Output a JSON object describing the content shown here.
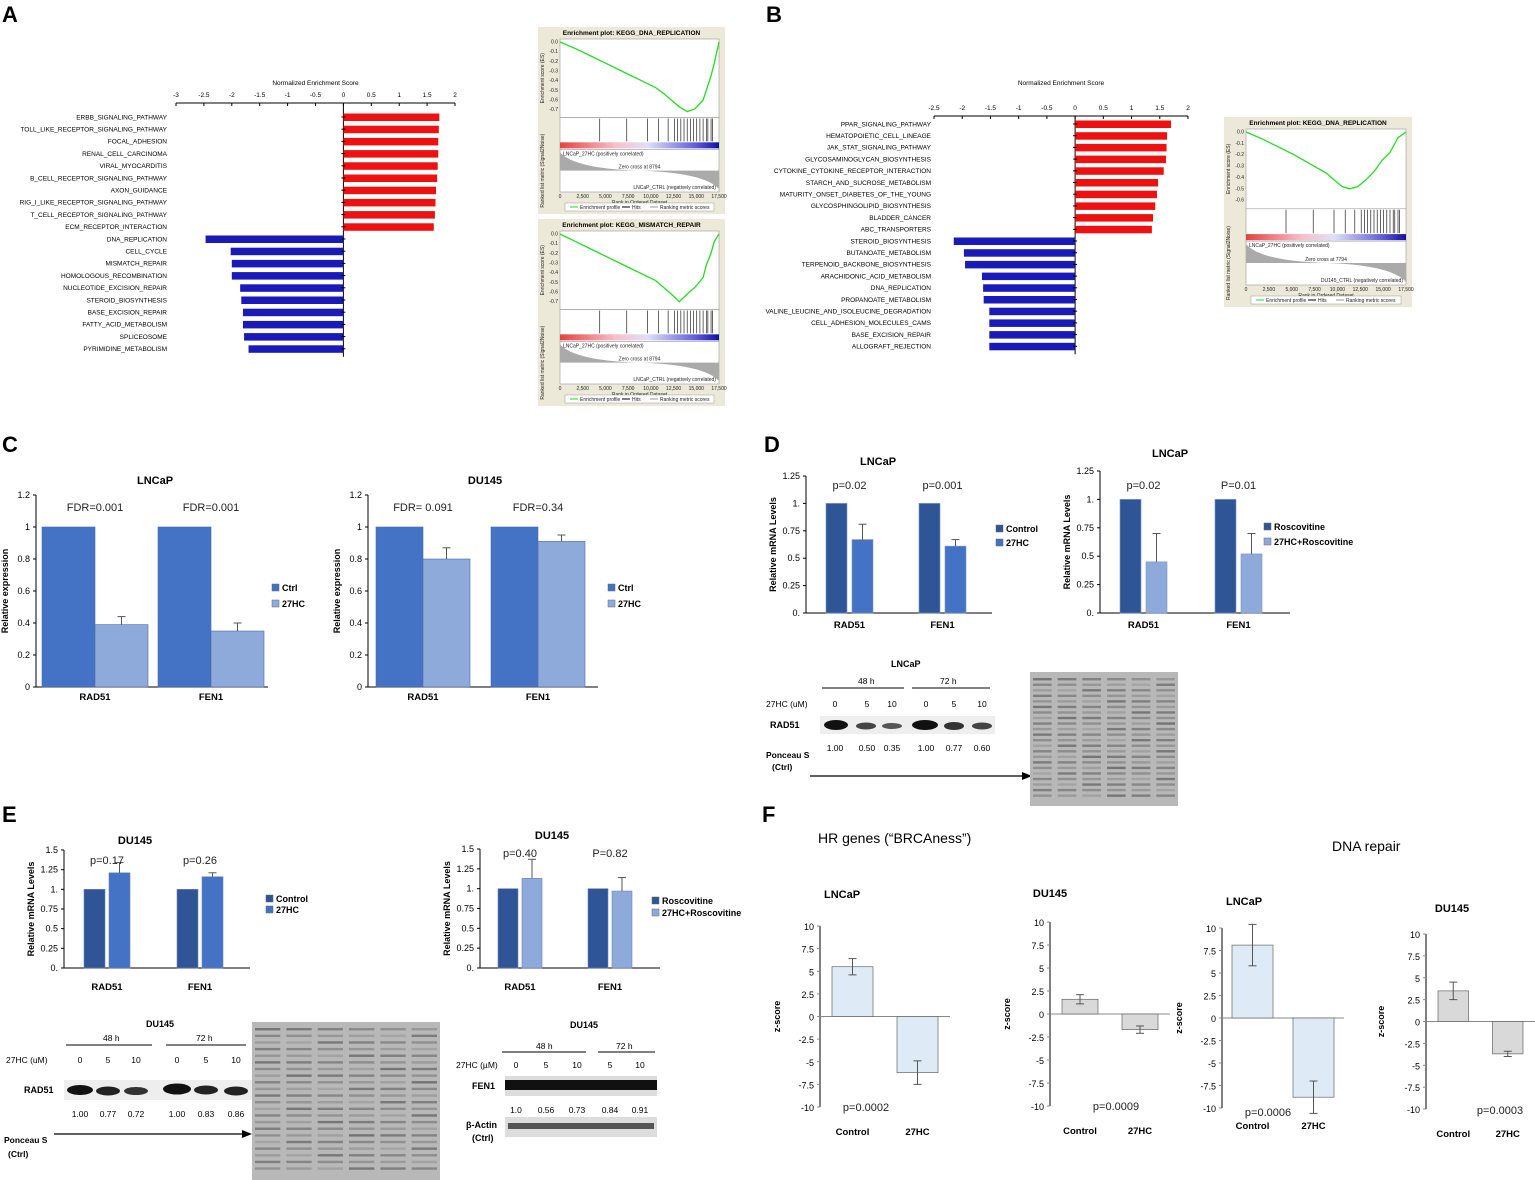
{
  "panels": {
    "A": "A",
    "B": "B",
    "C": "C",
    "D": "D",
    "E": "E",
    "F": "F"
  },
  "gsea_links": {
    "pos_label": "LNCaP_27HC (positively correlated)",
    "neg_label": "LNCaP_CTRL (negatively correlated)",
    "neg_label_b": "DU145_CTRL (negatively correlated)",
    "zero_cross": "Zero cross at 8794",
    "zero_cross_b": "Zero cross at 7794",
    "rank_axis": "Rank in Ordered Dataset",
    "y_es": "Enrichment score (ES)",
    "y_rank": "Ranked list metric (Signal2Noise)",
    "legend": [
      "Enrichment profile",
      "Hits",
      "Ranking metric scores"
    ],
    "x_ticks": [
      "0",
      "2,500",
      "5,000",
      "7,500",
      "10,000",
      "12,500",
      "15,000",
      "17,500"
    ]
  },
  "chart_data": [
    {
      "id": "A-nes",
      "type": "bar",
      "orientation": "horizontal",
      "title": "Normalized Enrichment Score",
      "xlim": [
        -3,
        2
      ],
      "x_ticks": [
        "-3",
        "-2.5",
        "-2",
        "-1.5",
        "-1",
        "-0.5",
        "0",
        "0.5",
        "1",
        "1.5",
        "2"
      ],
      "categories": [
        "ERBB_SIGNALING_PATHWAY",
        "TOLL_LIKE_RECEPTOR_SIGNALING_PATHWAY",
        "FOCAL_ADHESION",
        "RENAL_CELL_CARCINOMA",
        "VIRAL_MYOCARDITIS",
        "B_CELL_RECEPTOR_SIGNALING_PATHWAY",
        "AXON_GUIDANCE",
        "RIG_I_LIKE_RECEPTOR_SIGNALING_PATHWAY",
        "T_CELL_RECEPTOR_SIGNALING_PATHWAY",
        "ECM_RECEPTOR_INTERACTION",
        "DNA_REPLICATION",
        "CELL_CYCLE",
        "MISMATCH_REPAIR",
        "HOMOLOGOUS_RECOMBINATION",
        "NUCLEOTIDE_EXCISION_REPAIR",
        "STEROID_BIOSYNTHESIS",
        "BASE_EXCISION_REPAIR",
        "FATTY_ACID_METABOLISM",
        "SPLICEOSOME",
        "PYRIMIDINE_METABOLISM"
      ],
      "values": [
        1.72,
        1.71,
        1.7,
        1.7,
        1.69,
        1.68,
        1.66,
        1.65,
        1.64,
        1.62,
        -2.47,
        -2.02,
        -2.0,
        -2.0,
        -1.85,
        -1.83,
        -1.8,
        -1.8,
        -1.78,
        -1.7
      ]
    },
    {
      "id": "A-gsea1",
      "type": "line",
      "title": "Enrichment plot: KEGG_DNA_REPLICATION",
      "y_ticks": [
        "0.0",
        "-0.1",
        "-0.2",
        "-0.3",
        "-0.4",
        "-0.5",
        "-0.6",
        "-0.7"
      ],
      "x": [
        0,
        0.1,
        0.2,
        0.3,
        0.4,
        0.5,
        0.6,
        0.65,
        0.7,
        0.75,
        0.8,
        0.85,
        0.9,
        0.92,
        0.95,
        0.97,
        1.0
      ],
      "y": [
        0,
        -0.07,
        -0.15,
        -0.23,
        -0.31,
        -0.39,
        -0.47,
        -0.53,
        -0.6,
        -0.67,
        -0.72,
        -0.69,
        -0.6,
        -0.5,
        -0.35,
        -0.22,
        0
      ]
    },
    {
      "id": "A-gsea2",
      "type": "line",
      "title": "Enrichment plot: KEGG_MISMATCH_REPAIR",
      "y_ticks": [
        "0.0",
        "-0.1",
        "-0.2",
        "-0.3",
        "-0.4",
        "-0.5",
        "-0.6",
        "-0.7"
      ],
      "x": [
        0,
        0.1,
        0.2,
        0.3,
        0.4,
        0.5,
        0.6,
        0.65,
        0.7,
        0.75,
        0.8,
        0.85,
        0.9,
        0.92,
        0.95,
        0.97,
        1.0
      ],
      "y": [
        0,
        -0.08,
        -0.16,
        -0.24,
        -0.32,
        -0.4,
        -0.48,
        -0.55,
        -0.62,
        -0.7,
        -0.62,
        -0.55,
        -0.45,
        -0.32,
        -0.2,
        -0.08,
        0
      ]
    },
    {
      "id": "B-nes",
      "type": "bar",
      "orientation": "horizontal",
      "title": "Normalized Enrichment Score",
      "xlim": [
        -2.5,
        2
      ],
      "x_ticks": [
        "-2.5",
        "-2",
        "-1.5",
        "-1",
        "-0.5",
        "0",
        "0.5",
        "1",
        "1.5",
        "2"
      ],
      "categories": [
        "PPAR_SIGNALING_PATHWAY",
        "HEMATOPOIETIC_CELL_LINEAGE",
        "JAK_STAT_SIGNALING_PATHWAY",
        "GLYCOSAMINOGLYCAN_BIOSYNTHESIS",
        "CYTOKINE_CYTOKINE_RECEPTOR_INTERACTION",
        "STARCH_AND_SUCROSE_METABOLISM",
        "MATURITY_ONSET_DIABETES_OF_THE_YOUNG",
        "GLYCOSPHINGOLIPID_BIOSYNTHESIS",
        "BLADDER_CANCER",
        "ABC_TRANSPORTERS",
        "STEROID_BIOSYNTHESIS",
        "BUTANOATE_METABOLISM",
        "TERPENOID_BACKBONE_BIOSYNTHESIS",
        "ARACHIDONIC_ACID_METABOLISM",
        "DNA_REPLICATION",
        "PROPANOATE_METABOLISM",
        "VALINE_LEUCINE_AND_ISOLEUCINE_DEGRADATION",
        "CELL_ADHESION_MOLECULES_CAMS",
        "BASE_EXCISION_REPAIR",
        "ALLOGRAFT_REJECTION"
      ],
      "values": [
        1.7,
        1.63,
        1.62,
        1.61,
        1.57,
        1.47,
        1.45,
        1.42,
        1.38,
        1.36,
        -2.15,
        -1.97,
        -1.95,
        -1.65,
        -1.63,
        -1.62,
        -1.52,
        -1.52,
        -1.52,
        -1.52
      ]
    },
    {
      "id": "B-gsea",
      "type": "line",
      "title": "Enrichment plot: KEGG_DNA_REPLICATION",
      "y_ticks": [
        "0.0",
        "-0.1",
        "-0.2",
        "-0.3",
        "-0.4",
        "-0.5",
        "-0.6"
      ],
      "x": [
        0,
        0.1,
        0.2,
        0.3,
        0.4,
        0.5,
        0.55,
        0.6,
        0.65,
        0.7,
        0.75,
        0.8,
        0.85,
        0.9,
        0.95,
        1.0
      ],
      "y": [
        0,
        -0.06,
        -0.13,
        -0.2,
        -0.28,
        -0.36,
        -0.42,
        -0.48,
        -0.5,
        -0.48,
        -0.42,
        -0.35,
        -0.25,
        -0.18,
        -0.05,
        0
      ]
    },
    {
      "id": "C-lncap",
      "type": "bar",
      "title": "LNCaP",
      "ylabel": "Relative expression",
      "ylim": [
        0,
        1.2
      ],
      "y_ticks": [
        "0",
        "0.2",
        "0.4",
        "0.6",
        "0.8",
        "1",
        "1.2"
      ],
      "categories": [
        "RAD51",
        "FEN1"
      ],
      "series": [
        {
          "name": "Ctrl",
          "values": [
            1,
            1
          ],
          "errors": [
            0,
            0
          ]
        },
        {
          "name": "27HC",
          "values": [
            0.39,
            0.35
          ],
          "errors": [
            0.05,
            0.05
          ]
        }
      ],
      "annotations": [
        "FDR=0.001",
        "FDR=0.001"
      ]
    },
    {
      "id": "C-du145",
      "type": "bar",
      "title": "DU145",
      "ylabel": "Relative expression",
      "ylim": [
        0,
        1.2
      ],
      "y_ticks": [
        "0",
        "0.2",
        "0.4",
        "0.6",
        "0.8",
        "1",
        "1.2"
      ],
      "categories": [
        "RAD51",
        "FEN1"
      ],
      "series": [
        {
          "name": "Ctrl",
          "values": [
            1,
            1
          ],
          "errors": [
            0,
            0
          ]
        },
        {
          "name": "27HC",
          "values": [
            0.8,
            0.91
          ],
          "errors": [
            0.07,
            0.04
          ]
        }
      ],
      "annotations": [
        "FDR= 0.091",
        "FDR=0.34"
      ]
    },
    {
      "id": "D-lncap1",
      "type": "bar",
      "title": "LNCaP",
      "ylabel": "Relative mRNA Levels",
      "ylim": [
        0,
        1.25
      ],
      "y_ticks": [
        "0.",
        "0.25",
        "0.5",
        "0.75",
        "1.",
        "1.25"
      ],
      "categories": [
        "RAD51",
        "FEN1"
      ],
      "series": [
        {
          "name": "Control",
          "values": [
            1,
            1
          ],
          "errors": [
            0,
            0
          ]
        },
        {
          "name": "27HC",
          "values": [
            0.67,
            0.61
          ],
          "errors": [
            0.14,
            0.06
          ]
        }
      ],
      "annotations": [
        "p=0.02",
        "p=0.001"
      ]
    },
    {
      "id": "D-lncap2",
      "type": "bar",
      "title": "LNCaP",
      "ylabel": "Relative mRNA Levels",
      "ylim": [
        0,
        1.25
      ],
      "y_ticks": [
        "0.",
        "0.25",
        "0.5",
        "0.75",
        "1.",
        "1.25"
      ],
      "categories": [
        "RAD51",
        "FEN1"
      ],
      "series": [
        {
          "name": "Roscovitine",
          "values": [
            1,
            1
          ],
          "errors": [
            0,
            0
          ]
        },
        {
          "name": "27HC+Roscovitine",
          "values": [
            0.45,
            0.52
          ],
          "errors": [
            0.25,
            0.18
          ]
        }
      ],
      "annotations": [
        "p=0.02",
        "P=0.01"
      ]
    },
    {
      "id": "E-du145a",
      "type": "bar",
      "title": "DU145",
      "ylabel": "Relative mRNA Levels",
      "ylim": [
        0,
        1.5
      ],
      "y_ticks": [
        "0.",
        "0.25",
        "0.5",
        "0.75",
        "1.",
        "1.25",
        "1.5"
      ],
      "categories": [
        "RAD51",
        "FEN1"
      ],
      "series": [
        {
          "name": "Control",
          "values": [
            1,
            1
          ],
          "errors": [
            0,
            0
          ]
        },
        {
          "name": "27HC",
          "values": [
            1.21,
            1.16
          ],
          "errors": [
            0.13,
            0.05
          ]
        }
      ],
      "annotations": [
        "p=0.17",
        "p=0.26"
      ]
    },
    {
      "id": "E-du145b",
      "type": "bar",
      "title": "DU145",
      "ylabel": "Relative mRNA Levels",
      "ylim": [
        0,
        1.5
      ],
      "y_ticks": [
        "0.",
        "0.25",
        "0.5",
        "0.75",
        "1.",
        "1.25",
        "1.5"
      ],
      "categories": [
        "RAD51",
        "FEN1"
      ],
      "series": [
        {
          "name": "Roscovitine",
          "values": [
            1,
            1
          ],
          "errors": [
            0,
            0
          ]
        },
        {
          "name": "27HC+Roscovitine",
          "values": [
            1.13,
            0.97
          ],
          "errors": [
            0.24,
            0.17
          ]
        }
      ],
      "annotations": [
        "p=0.40",
        "P=0.82"
      ]
    },
    {
      "id": "F-hr-lncap",
      "type": "bar",
      "title": "LNCaP",
      "ylabel": "z-score",
      "ylim": [
        -10,
        10
      ],
      "y_ticks": [
        "10",
        "7.5",
        "5",
        "2.5",
        "0",
        "-2.5",
        "-5",
        "-7.5",
        "-10"
      ],
      "categories": [
        "Control",
        "27HC"
      ],
      "values": [
        5.5,
        -6.2
      ],
      "errors": [
        0.9,
        1.3
      ],
      "annotations": [
        "p=0.0002"
      ]
    },
    {
      "id": "F-hr-du145",
      "type": "bar",
      "title": "DU145",
      "ylabel": "z-score",
      "ylim": [
        -10,
        10
      ],
      "y_ticks": [
        "10",
        "7.5",
        "5",
        "2.5",
        "0",
        "-2.5",
        "-5",
        "-7.5",
        "-10"
      ],
      "categories": [
        "Control",
        "27HC"
      ],
      "values": [
        1.6,
        -1.7
      ],
      "errors": [
        0.5,
        0.4
      ],
      "annotations": [
        "p=0.0009"
      ]
    },
    {
      "id": "F-dna-lncap",
      "type": "bar",
      "title": "LNCaP",
      "ylabel": "z-score",
      "ylim": [
        -10,
        10
      ],
      "y_ticks": [
        "10",
        "7.5",
        "5",
        "2.5",
        "0",
        "-2.5",
        "-5",
        "-7.5",
        "-10"
      ],
      "categories": [
        "Control",
        "27HC"
      ],
      "values": [
        8.1,
        -8.8
      ],
      "errors": [
        2.3,
        1.8
      ],
      "annotations": [
        "p=0.0006"
      ]
    },
    {
      "id": "F-dna-du145",
      "type": "bar",
      "title": "DU145",
      "ylabel": "z-score",
      "ylim": [
        -10,
        10
      ],
      "y_ticks": [
        "10",
        "7.5",
        "5",
        "2.5",
        "0",
        "-2.5",
        "-5",
        "-7.5",
        "-10"
      ],
      "categories": [
        "Control",
        "27HC"
      ],
      "values": [
        3.5,
        -3.7
      ],
      "errors": [
        1.0,
        0.3
      ],
      "annotations": [
        "p=0.0003"
      ]
    }
  ],
  "blots": {
    "D": {
      "title": "LNCaP",
      "time1": "48 h",
      "time2": "72 h",
      "treat_label": "27HC (uM)",
      "doses": [
        "0",
        "5",
        "10",
        "0",
        "5",
        "10"
      ],
      "protein": "RAD51",
      "quant": [
        "1.00",
        "0.50",
        "0.35",
        "1.00",
        "0.77",
        "0.60"
      ],
      "loading1": "Ponceau S",
      "loading2": "(Ctrl)"
    },
    "E1": {
      "title": "DU145",
      "time1": "48 h",
      "time2": "72 h",
      "treat_label": "27HC (uM)",
      "doses": [
        "0",
        "5",
        "10",
        "0",
        "5",
        "10"
      ],
      "protein": "RAD51",
      "quant": [
        "1.00",
        "0.77",
        "0.72",
        "1.00",
        "0.83",
        "0.86"
      ],
      "loading1": "Ponceau S",
      "loading2": "(Ctrl)"
    },
    "E2": {
      "title": "DU145",
      "time1": "48 h",
      "time2": "72 h",
      "treat_label": "27HC (µM)",
      "doses": [
        "0",
        "5",
        "10",
        "5",
        "10"
      ],
      "protein": "FEN1",
      "quant": [
        "1.0",
        "0.56",
        "0.73",
        "0.84",
        "0.91"
      ],
      "loading1": "β-Actin",
      "loading2": "(Ctrl)"
    }
  },
  "F_titles": {
    "hr": "HR genes (“BRCAness”)",
    "dna": "DNA repair"
  },
  "colors": {
    "red": "#ee1111",
    "blue": "#1a1ab8",
    "ctrl": "#4472c4",
    "trt": "#8eaadb",
    "dctrl": "#2f5597",
    "f_blue": "#deebf7",
    "f_grey": "#d9d9d9",
    "gsea_green": "#22dd22"
  }
}
